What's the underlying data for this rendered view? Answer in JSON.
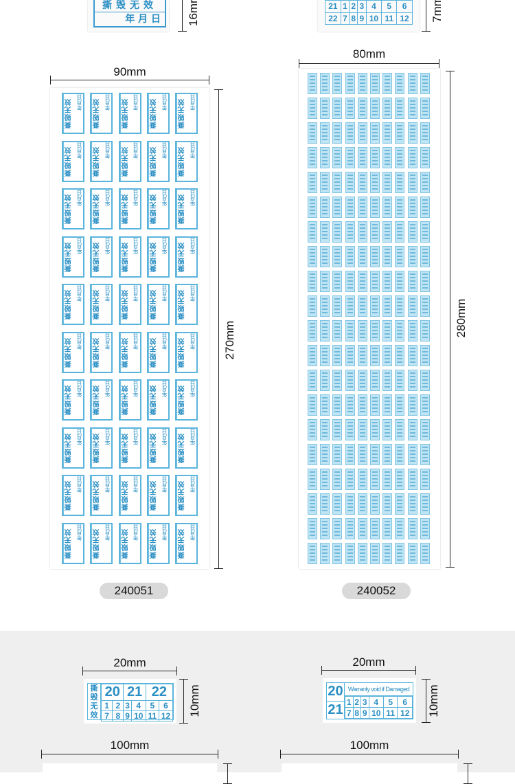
{
  "top_left": {
    "title_partial": "撕毁无效",
    "date_row": "年 月 日",
    "dimension": "16mm"
  },
  "top_right": {
    "rows": [
      [
        "21",
        "1",
        "2",
        "3",
        "4",
        "5",
        "6"
      ],
      [
        "22",
        "7",
        "8",
        "9",
        "10",
        "11",
        "12"
      ]
    ],
    "dimension": "7mm"
  },
  "sheet_240051": {
    "width": "90mm",
    "height": "270mm",
    "code": "240051",
    "label_text": "撕毁无效",
    "label_date": "年月日",
    "columns": 5,
    "rows": 10
  },
  "sheet_240052": {
    "width": "80mm",
    "height": "280mm",
    "code": "240052",
    "columns": 10,
    "rows": 20
  },
  "label_cn": {
    "width": "20mm",
    "height": "10mm",
    "side_text": "撕毁无效",
    "years": [
      "20",
      "21",
      "22"
    ],
    "months": [
      [
        "1",
        "2",
        "3",
        "4",
        "5",
        "6"
      ],
      [
        "7",
        "8",
        "9",
        "10",
        "11",
        "12"
      ]
    ]
  },
  "label_en": {
    "width": "20mm",
    "height": "10mm",
    "years": [
      "20",
      "21"
    ],
    "header": "Warranty void if Damaged",
    "months": [
      [
        "1",
        "2",
        "3",
        "4",
        "5",
        "6"
      ],
      [
        "7",
        "8",
        "9",
        "10",
        "11",
        "12"
      ]
    ]
  },
  "bottom": {
    "left_width": "100mm",
    "right_width": "100mm"
  },
  "colors": {
    "label_blue": "#2a8fc4",
    "band_gray": "#efefef",
    "pill_gray": "#d9d9d9"
  }
}
